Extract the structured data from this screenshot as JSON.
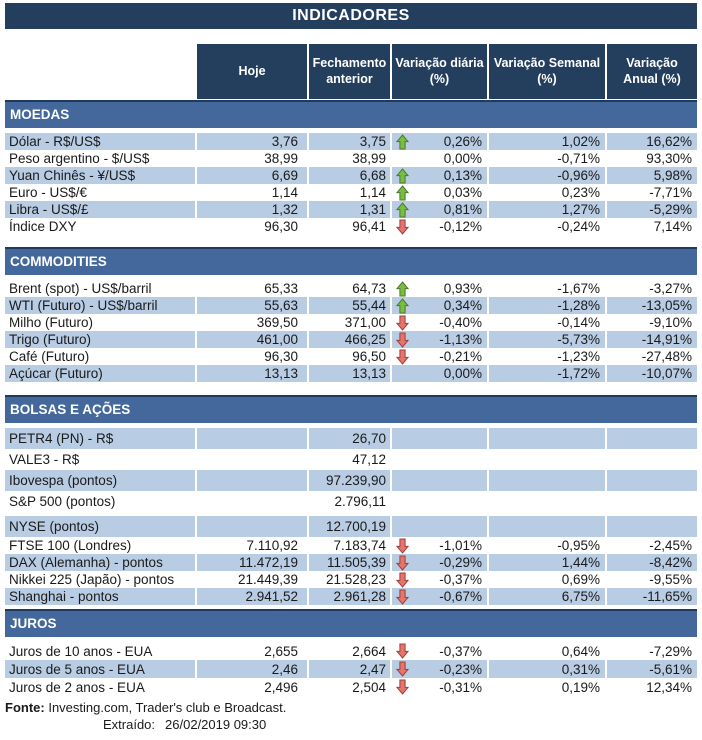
{
  "title": "INDICADORES",
  "columns": {
    "hoje": "Hoje",
    "fechamento": "Fechamento anterior",
    "var_diaria": "Variação diária (%)",
    "var_semanal": "Variação Semanal (%)",
    "var_anual": "Variação Anual (%)"
  },
  "colors": {
    "navy": "#243F5E",
    "section_band": "#44689B",
    "shaded_row": "#B8CCE4",
    "arrow_up_fill": "#77BE43",
    "arrow_up_stroke": "#4C7A27",
    "arrow_down_fill": "#E4756C",
    "arrow_down_stroke": "#A03E3A"
  },
  "sections": [
    {
      "name": "MOEDAS",
      "rows": [
        {
          "label": "Dólar - R$/US$",
          "hoje": "3,76",
          "fechamento": "3,75",
          "arrow": "up",
          "var_diaria": "0,26%",
          "var_semanal": "1,02%",
          "var_anual": "16,62%",
          "shade": true
        },
        {
          "label": "Peso argentino - $/US$",
          "hoje": "38,99",
          "fechamento": "38,99",
          "arrow": "",
          "var_diaria": "0,00%",
          "var_semanal": "-0,71%",
          "var_anual": "93,30%",
          "shade": false
        },
        {
          "label": "Yuan Chinês - ¥/US$",
          "hoje": "6,69",
          "fechamento": "6,68",
          "arrow": "up",
          "var_diaria": "0,13%",
          "var_semanal": "-0,96%",
          "var_anual": "5,98%",
          "shade": true
        },
        {
          "label": "Euro - US$/€",
          "hoje": "1,14",
          "fechamento": "1,14",
          "arrow": "up",
          "var_diaria": "0,03%",
          "var_semanal": "0,23%",
          "var_anual": "-7,71%",
          "shade": false
        },
        {
          "label": "Libra - US$/£",
          "hoje": "1,32",
          "fechamento": "1,31",
          "arrow": "up",
          "var_diaria": "0,81%",
          "var_semanal": "1,27%",
          "var_anual": "-5,29%",
          "shade": true
        },
        {
          "label": "Índice DXY",
          "hoje": "96,30",
          "fechamento": "96,41",
          "arrow": "down",
          "var_diaria": "-0,12%",
          "var_semanal": "-0,24%",
          "var_anual": "7,14%",
          "shade": false
        }
      ]
    },
    {
      "name": "COMMODITIES",
      "rows": [
        {
          "label": "Brent (spot) - US$/barril",
          "hoje": "65,33",
          "fechamento": "64,73",
          "arrow": "up",
          "var_diaria": "0,93%",
          "var_semanal": "-1,67%",
          "var_anual": "-3,27%",
          "shade": false
        },
        {
          "label": "WTI (Futuro) - US$/barril",
          "hoje": "55,63",
          "fechamento": "55,44",
          "arrow": "up",
          "var_diaria": "0,34%",
          "var_semanal": "-1,28%",
          "var_anual": "-13,05%",
          "shade": true
        },
        {
          "label": "Milho (Futuro)",
          "hoje": "369,50",
          "fechamento": "371,00",
          "arrow": "down",
          "var_diaria": "-0,40%",
          "var_semanal": "-0,14%",
          "var_anual": "-9,10%",
          "shade": false
        },
        {
          "label": "Trigo (Futuro)",
          "hoje": "461,00",
          "fechamento": "466,25",
          "arrow": "down",
          "var_diaria": "-1,13%",
          "var_semanal": "-5,73%",
          "var_anual": "-14,91%",
          "shade": true
        },
        {
          "label": "Café (Futuro)",
          "hoje": "96,30",
          "fechamento": "96,50",
          "arrow": "down",
          "var_diaria": "-0,21%",
          "var_semanal": "-1,23%",
          "var_anual": "-27,48%",
          "shade": false
        },
        {
          "label": "Açúcar (Futuro)",
          "hoje": "13,13",
          "fechamento": "13,13",
          "arrow": "",
          "var_diaria": "0,00%",
          "var_semanal": "-1,72%",
          "var_anual": "-10,07%",
          "shade": true
        }
      ]
    },
    {
      "name": "BOLSAS E AÇÕES",
      "rows": [
        {
          "label": "PETR4 (PN) - R$",
          "hoje": "",
          "fechamento": "26,70",
          "arrow": "",
          "var_diaria": "",
          "var_semanal": "",
          "var_anual": "",
          "shade": true,
          "tall": true
        },
        {
          "label": "VALE3 - R$",
          "hoje": "",
          "fechamento": "47,12",
          "arrow": "",
          "var_diaria": "",
          "var_semanal": "",
          "var_anual": "",
          "shade": false,
          "tall": true
        },
        {
          "label": "Ibovespa (pontos)",
          "hoje": "",
          "fechamento": "97.239,90",
          "arrow": "",
          "var_diaria": "",
          "var_semanal": "",
          "var_anual": "",
          "shade": true,
          "tall": true
        },
        {
          "label": "S&P 500 (pontos)",
          "hoje": "",
          "fechamento": "2.796,11",
          "arrow": "",
          "var_diaria": "",
          "var_semanal": "",
          "var_anual": "",
          "shade": false,
          "tall": true
        },
        {
          "label": "NYSE (pontos)",
          "hoje": "",
          "fechamento": "12.700,19",
          "arrow": "",
          "var_diaria": "",
          "var_semanal": "",
          "var_anual": "",
          "shade": true,
          "tall": true,
          "gap_before": true
        },
        {
          "label": "FTSE 100 (Londres)",
          "hoje": "7.110,92",
          "fechamento": "7.183,74",
          "arrow": "down",
          "var_diaria": "-1,01%",
          "var_semanal": "-0,95%",
          "var_anual": "-2,45%",
          "shade": false
        },
        {
          "label": "DAX (Alemanha) - pontos",
          "hoje": "11.472,19",
          "fechamento": "11.505,39",
          "arrow": "down",
          "var_diaria": "-0,29%",
          "var_semanal": "1,44%",
          "var_anual": "-8,42%",
          "shade": true
        },
        {
          "label": "Nikkei 225 (Japão) - pontos",
          "hoje": "21.449,39",
          "fechamento": "21.528,23",
          "arrow": "down",
          "var_diaria": "-0,37%",
          "var_semanal": "0,69%",
          "var_anual": "-9,55%",
          "shade": false
        },
        {
          "label": "Shanghai - pontos",
          "hoje": "2.941,52",
          "fechamento": "2.961,28",
          "arrow": "down",
          "var_diaria": "-0,67%",
          "var_semanal": "6,75%",
          "var_anual": "-11,65%",
          "shade": true
        }
      ]
    },
    {
      "name": "JUROS",
      "rows": [
        {
          "label": "Juros de 10 anos - EUA",
          "hoje": "2,655",
          "fechamento": "2,664",
          "arrow": "down",
          "var_diaria": "-0,37%",
          "var_semanal": "0,64%",
          "var_anual": "-7,29%",
          "shade": false,
          "juros": true
        },
        {
          "label": "Juros de 5 anos - EUA",
          "hoje": "2,46",
          "fechamento": "2,47",
          "arrow": "down",
          "var_diaria": "-0,23%",
          "var_semanal": "0,31%",
          "var_anual": "-5,61%",
          "shade": true,
          "juros": true
        },
        {
          "label": "Juros de 2 anos - EUA",
          "hoje": "2,496",
          "fechamento": "2,504",
          "arrow": "down",
          "var_diaria": "-0,31%",
          "var_semanal": "0,19%",
          "var_anual": "12,34%",
          "shade": false,
          "juros": true
        }
      ]
    }
  ],
  "footer": {
    "fonte_label": "Fonte:",
    "fonte_text": " Investing.com, Trader's club e Broadcast.",
    "extraido_label": "Extraído:",
    "extraido_value": "26/02/2019 09:30"
  }
}
